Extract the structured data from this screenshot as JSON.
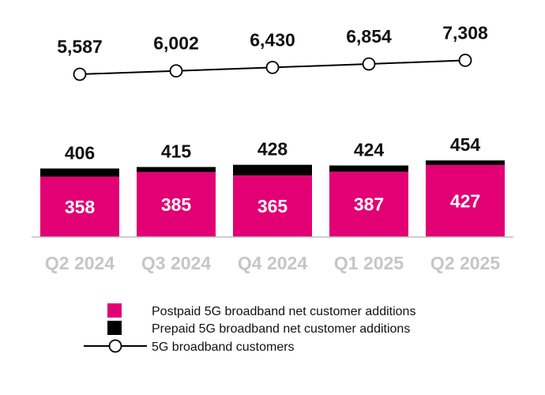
{
  "chart_data": {
    "type": "bar",
    "stacked": true,
    "categories": [
      "Q2 2024",
      "Q3 2024",
      "Q4 2024",
      "Q1 2025",
      "Q2 2025"
    ],
    "series": [
      {
        "name": "Postpaid 5G broadband net customer additions",
        "kind": "bar",
        "color": "#e20074",
        "values": [
          358,
          385,
          365,
          387,
          427
        ]
      },
      {
        "name": "Prepaid 5G broadband net customer additions",
        "kind": "bar",
        "color": "#000000",
        "values": [
          48,
          30,
          63,
          37,
          27
        ]
      },
      {
        "name": "5G broadband customers",
        "kind": "line",
        "color": "#000000",
        "values": [
          5587,
          6002,
          6430,
          6854,
          7308
        ]
      }
    ],
    "totals": [
      406,
      415,
      428,
      424,
      454
    ],
    "labels": {
      "line": [
        "5,587",
        "6,002",
        "6,430",
        "6,854",
        "7,308"
      ],
      "totals": [
        "406",
        "415",
        "428",
        "424",
        "454"
      ],
      "postpaid": [
        "358",
        "385",
        "365",
        "387",
        "427"
      ]
    },
    "legend_position": "bottom"
  }
}
